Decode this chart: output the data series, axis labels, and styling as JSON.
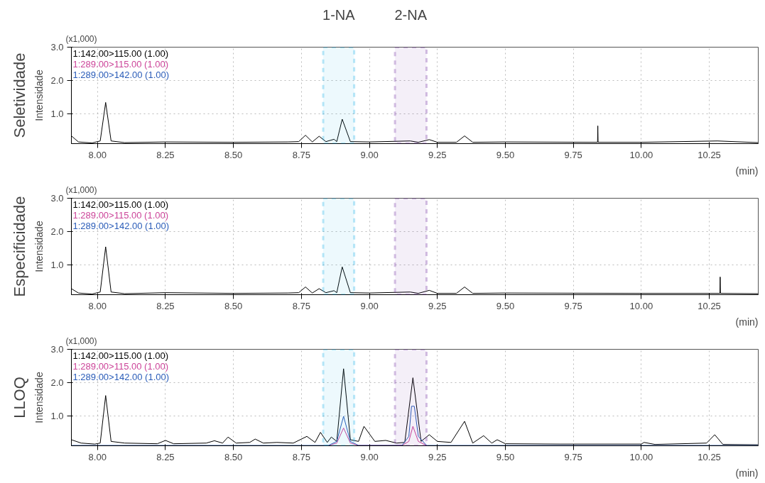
{
  "chart_data": [
    {
      "type": "line",
      "title": "Seletividade",
      "ylabel": "Intensidade",
      "xlabel": "(min)",
      "annotations": [
        "(x1,000)"
      ],
      "xlim": [
        7.904,
        10.43
      ],
      "ylim": [
        0.12,
        3.0
      ],
      "xticks": [
        {
          "value": 8,
          "label": "8.00"
        },
        {
          "value": 8.25,
          "label": "8.25"
        },
        {
          "value": 8.5,
          "label": "8.50"
        },
        {
          "value": 8.75,
          "label": "8.75"
        },
        {
          "value": 9,
          "label": "9.00"
        },
        {
          "value": 9.25,
          "label": "9.25"
        },
        {
          "value": 9.5,
          "label": "9.50"
        },
        {
          "value": 9.75,
          "label": "9.75"
        },
        {
          "value": 10,
          "label": "10.00"
        },
        {
          "value": 10.25,
          "label": "10.25"
        }
      ],
      "yticks": [
        {
          "value": 1,
          "label": "1.0"
        },
        {
          "value": 2,
          "label": "2.0"
        },
        {
          "value": 3,
          "label": "3.0"
        }
      ],
      "grid": true,
      "legend": "top left",
      "bands": [
        {
          "axis": "x",
          "from": 8.83,
          "to": 8.944,
          "label": "1-NA",
          "color": "#1ab0e8"
        },
        {
          "axis": "x",
          "from": 9.094,
          "to": 9.21,
          "label": "2-NA",
          "color": "#7030a0"
        }
      ],
      "series": [
        {
          "name": "1:142.00>115.00 (1.00)",
          "color": "#000000",
          "x": [
            7.904,
            7.93,
            7.98,
            8.01,
            8.03,
            8.05,
            8.1,
            8.25,
            8.5,
            8.7,
            8.74,
            8.765,
            8.79,
            8.815,
            8.84,
            8.87,
            8.88,
            8.9,
            8.93,
            9.0,
            9.15,
            9.18,
            9.22,
            9.25,
            9.32,
            9.35,
            9.38,
            9.5,
            9.839,
            9.84,
            9.841,
            10.0,
            10.28,
            10.43
          ],
          "values": [
            0.35,
            0.17,
            0.14,
            0.2,
            1.35,
            0.2,
            0.15,
            0.17,
            0.16,
            0.17,
            0.18,
            0.37,
            0.17,
            0.34,
            0.18,
            0.25,
            0.18,
            0.85,
            0.18,
            0.17,
            0.2,
            0.16,
            0.24,
            0.16,
            0.16,
            0.35,
            0.16,
            0.17,
            0.16,
            0.65,
            0.16,
            0.16,
            0.2,
            0.15
          ]
        },
        {
          "name": "1:289.00>115.00 (1.00)",
          "color": "#cc4499"
        },
        {
          "name": "1:289.00>142.00 (1.00)",
          "color": "#2a5cb8"
        }
      ]
    },
    {
      "type": "line",
      "title": "Especificidade",
      "ylabel": "Intensidade",
      "xlabel": "(min)",
      "annotations": [
        "(x1,000)"
      ],
      "xlim": [
        7.904,
        10.43
      ],
      "ylim": [
        0.12,
        3.0
      ],
      "xticks": [
        {
          "value": 8,
          "label": "8.00"
        },
        {
          "value": 8.25,
          "label": "8.25"
        },
        {
          "value": 8.5,
          "label": "8.50"
        },
        {
          "value": 8.75,
          "label": "8.75"
        },
        {
          "value": 9,
          "label": "9.00"
        },
        {
          "value": 9.25,
          "label": "9.25"
        },
        {
          "value": 9.5,
          "label": "9.50"
        },
        {
          "value": 9.75,
          "label": "9.75"
        },
        {
          "value": 10,
          "label": "10.00"
        },
        {
          "value": 10.25,
          "label": "10.25"
        }
      ],
      "yticks": [
        {
          "value": 1,
          "label": "1.0"
        },
        {
          "value": 2,
          "label": "2.0"
        },
        {
          "value": 3,
          "label": "3.0"
        }
      ],
      "grid": true,
      "legend": "top left",
      "bands": [
        {
          "axis": "x",
          "from": 8.83,
          "to": 8.944,
          "label": null,
          "color": "#1ab0e8"
        },
        {
          "axis": "x",
          "from": 9.094,
          "to": 9.21,
          "label": null,
          "color": "#7030a0"
        }
      ],
      "series": [
        {
          "name": "1:142.00>115.00 (1.00)",
          "color": "#000000",
          "x": [
            7.904,
            7.93,
            7.98,
            8.01,
            8.03,
            8.05,
            8.1,
            8.25,
            8.5,
            8.7,
            8.74,
            8.765,
            8.79,
            8.815,
            8.84,
            8.87,
            8.88,
            8.9,
            8.93,
            9.0,
            9.15,
            9.18,
            9.22,
            9.25,
            9.32,
            9.35,
            9.38,
            9.5,
            10.0,
            10.289,
            10.29,
            10.291,
            10.43
          ],
          "values": [
            0.3,
            0.17,
            0.14,
            0.2,
            1.55,
            0.2,
            0.15,
            0.18,
            0.16,
            0.17,
            0.18,
            0.35,
            0.17,
            0.3,
            0.18,
            0.24,
            0.18,
            0.95,
            0.18,
            0.17,
            0.2,
            0.16,
            0.25,
            0.16,
            0.16,
            0.35,
            0.16,
            0.17,
            0.16,
            0.16,
            0.65,
            0.16,
            0.15
          ]
        },
        {
          "name": "1:289.00>115.00 (1.00)",
          "color": "#cc4499"
        },
        {
          "name": "1:289.00>142.00 (1.00)",
          "color": "#2a5cb8"
        }
      ]
    },
    {
      "type": "line",
      "title": "LLOQ",
      "ylabel": "Intensidade",
      "xlabel": "(min)",
      "annotations": [
        "(x1,000)"
      ],
      "xlim": [
        7.904,
        10.43
      ],
      "ylim": [
        0.12,
        3.0
      ],
      "xticks": [
        {
          "value": 8,
          "label": "8.00"
        },
        {
          "value": 8.25,
          "label": "8.25"
        },
        {
          "value": 8.5,
          "label": "8.50"
        },
        {
          "value": 8.75,
          "label": "8.75"
        },
        {
          "value": 9,
          "label": "9.00"
        },
        {
          "value": 9.25,
          "label": "9.25"
        },
        {
          "value": 9.5,
          "label": "9.50"
        },
        {
          "value": 9.75,
          "label": "9.75"
        },
        {
          "value": 10,
          "label": "10.00"
        },
        {
          "value": 10.25,
          "label": "10.25"
        }
      ],
      "yticks": [
        {
          "value": 1,
          "label": "1.0"
        },
        {
          "value": 2,
          "label": "2.0"
        },
        {
          "value": 3,
          "label": "3.0"
        }
      ],
      "grid": true,
      "legend": "top left",
      "bands": [
        {
          "axis": "x",
          "from": 8.83,
          "to": 8.944,
          "label": null,
          "color": "#1ab0e8"
        },
        {
          "axis": "x",
          "from": 9.094,
          "to": 9.21,
          "label": null,
          "color": "#7030a0"
        }
      ],
      "series": [
        {
          "name": "1:142.00>115.00 (1.00)",
          "color": "#000000",
          "x": [
            7.904,
            7.94,
            7.99,
            8.01,
            8.03,
            8.05,
            8.1,
            8.22,
            8.25,
            8.28,
            8.4,
            8.43,
            8.46,
            8.48,
            8.51,
            8.56,
            8.58,
            8.61,
            8.66,
            8.72,
            8.77,
            8.8,
            8.82,
            8.845,
            8.86,
            8.88,
            8.905,
            8.93,
            8.96,
            8.98,
            9.02,
            9.06,
            9.1,
            9.13,
            9.16,
            9.19,
            9.22,
            9.25,
            9.3,
            9.35,
            9.38,
            9.42,
            9.45,
            9.47,
            9.5,
            9.7,
            10.0,
            10.01,
            10.05,
            10.24,
            10.27,
            10.3,
            10.43
          ],
          "values": [
            0.3,
            0.2,
            0.17,
            0.2,
            1.62,
            0.25,
            0.2,
            0.18,
            0.28,
            0.18,
            0.2,
            0.27,
            0.2,
            0.38,
            0.2,
            0.22,
            0.32,
            0.2,
            0.22,
            0.2,
            0.4,
            0.22,
            0.52,
            0.22,
            0.38,
            0.25,
            2.42,
            0.3,
            0.25,
            0.7,
            0.25,
            0.28,
            0.2,
            0.22,
            2.15,
            0.25,
            0.45,
            0.25,
            0.22,
            0.85,
            0.2,
            0.42,
            0.2,
            0.3,
            0.18,
            0.17,
            0.17,
            0.22,
            0.16,
            0.2,
            0.45,
            0.16,
            0.15
          ]
        },
        {
          "name": "1:289.00>115.00 (1.00)",
          "color": "#cc4499",
          "x": [
            8.85,
            8.88,
            8.905,
            8.93,
            8.96,
            9.12,
            9.145,
            9.16,
            9.18,
            9.21
          ],
          "values": [
            0.13,
            0.2,
            0.65,
            0.2,
            0.13,
            0.13,
            0.25,
            0.7,
            0.25,
            0.13
          ]
        },
        {
          "name": "1:289.00>142.00 (1.00)",
          "color": "#2a5cb8",
          "x": [
            7.904,
            8.85,
            8.88,
            8.905,
            8.93,
            8.96,
            9.12,
            9.145,
            9.155,
            9.165,
            9.18,
            9.21,
            9.5,
            10.0,
            10.43
          ],
          "values": [
            0.13,
            0.13,
            0.25,
            1.0,
            0.25,
            0.13,
            0.13,
            0.4,
            1.3,
            1.3,
            0.4,
            0.13,
            0.13,
            0.13,
            0.13
          ]
        }
      ]
    }
  ]
}
